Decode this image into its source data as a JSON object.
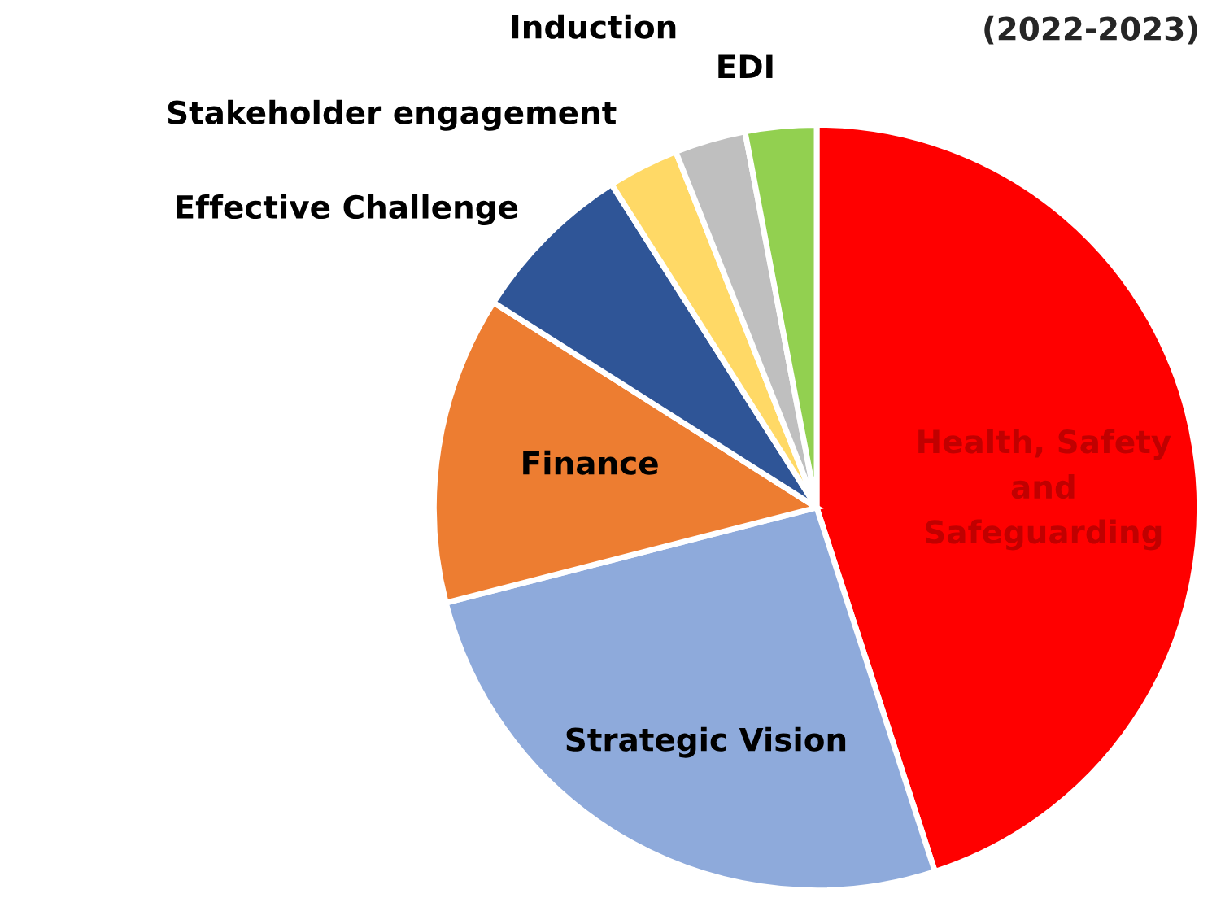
{
  "chart_data": {
    "type": "pie",
    "title": "(2022-2023)",
    "categories": [
      "Health, Safety\nand\nSafeguarding",
      "Strategic Vision",
      "Finance",
      "Effective Challenge",
      "Stakeholder engagement",
      "Induction",
      "EDI"
    ],
    "values": [
      45,
      26,
      13,
      7,
      3,
      3,
      3
    ],
    "colors": [
      "#ff0000",
      "#8eaadb",
      "#ed7d31",
      "#2f5597",
      "#ffd966",
      "#bfbfbf",
      "#92d050"
    ],
    "legend": false
  }
}
